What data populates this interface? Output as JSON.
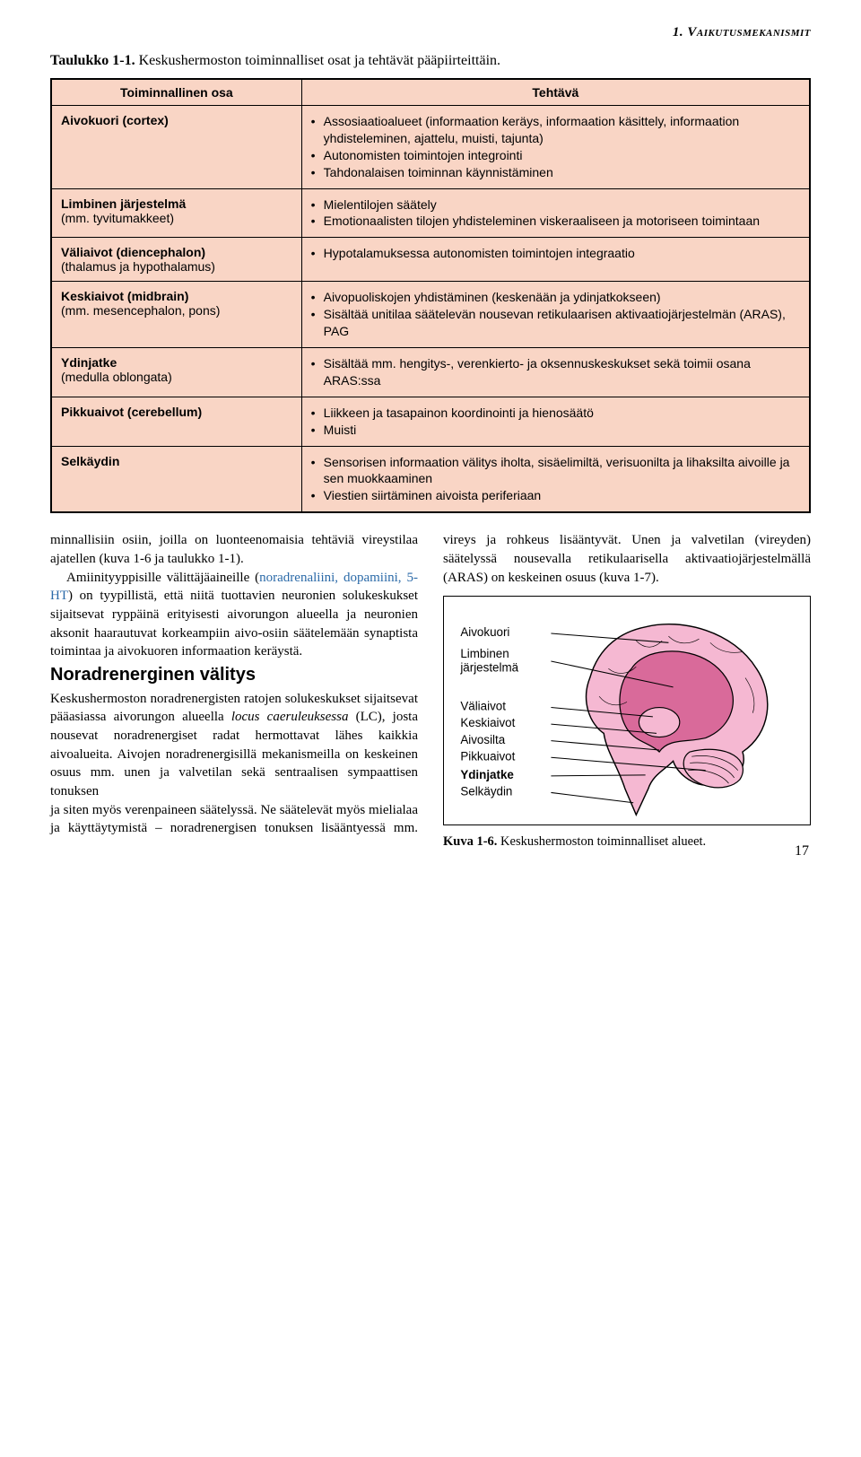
{
  "header": {
    "section_label": "1. Vaikutusmekanismit"
  },
  "table": {
    "caption_bold": "Taulukko 1-1.",
    "caption_rest": " Keskushermoston toiminnalliset osat ja tehtävät pääpiirteittäin.",
    "col1": "Toiminnallinen osa",
    "col2": "Tehtävä",
    "bg_color": "#f9d5c5",
    "rows": [
      {
        "osa_bold": "Aivokuori (cortex)",
        "osa_sub": "",
        "items": [
          "Assosiaatioalueet (informaation keräys, informaation käsittely, informaation yhdisteleminen, ajattelu, muisti, tajunta)",
          "Autonomisten toimintojen integrointi",
          "Tahdonalaisen toiminnan käynnistäminen"
        ]
      },
      {
        "osa_bold": "Limbinen järjestelmä",
        "osa_sub": "(mm. tyvitumakkeet)",
        "items": [
          "Mielentilojen säätely",
          "Emotionaalisten tilojen yhdisteleminen viskeraaliseen ja motoriseen toimintaan"
        ]
      },
      {
        "osa_bold": "Väliaivot (diencephalon)",
        "osa_sub": "(thalamus ja hypothalamus)",
        "items": [
          "Hypotalamuksessa autonomisten toimintojen integraatio"
        ]
      },
      {
        "osa_bold": "Keskiaivot (midbrain)",
        "osa_sub": "(mm. mesencephalon, pons)",
        "items": [
          "Aivopuoliskojen yhdistäminen (keskenään ja ydinjatkokseen)",
          "Sisältää unitilaa säätelevän nousevan retikulaarisen aktivaatiojärjestelmän (ARAS), PAG"
        ]
      },
      {
        "osa_bold": "Ydinjatke",
        "osa_sub": "(medulla oblongata)",
        "items": [
          "Sisältää mm. hengitys-, verenkierto- ja oksennuskeskukset sekä toimii osana ARAS:ssa"
        ]
      },
      {
        "osa_bold": "Pikkuaivot (cerebellum)",
        "osa_sub": "",
        "items": [
          "Liikkeen ja tasapainon koordinointi ja hienosäätö",
          "Muisti"
        ]
      },
      {
        "osa_bold": "Selkäydin",
        "osa_sub": "",
        "items": [
          "Sensorisen informaation välitys iholta, sisäelimiltä, verisuonilta ja lihaksilta aivoille ja sen muokkaaminen",
          "Viestien siirtäminen aivoista periferiaan"
        ]
      }
    ]
  },
  "body": {
    "p1": "minnallisiin osiin, joilla on luonteenomaisia tehtäviä vireystilaa ajatellen (kuva 1-6 ja taulukko 1-1).",
    "p2a": "Amiinityyppisille välittäjäaineille (",
    "p2_blue": "noradrenaliini, dopamiini, 5-HT",
    "p2b": ") on tyypillistä, että niitä tuottavien neuronien solukeskukset sijaitsevat ryppäinä erityisesti aivorungon alueella ja neuronien aksonit haarautuvat korkeampiin aivo-osiin säätelemään synaptista toimintaa ja aivokuoren informaation keräystä.",
    "h2": "Noradrenerginen välitys",
    "p3a": "Keskushermoston noradrenergisten ratojen solukeskukset sijaitsevat pääasiassa aivorungon alueella ",
    "p3_ital": "locus caeruleuksessa",
    "p3b": " (LC), josta nousevat noradrenergiset radat hermottavat lähes kaikkia aivoalueita. Aivojen noradrenergisillä mekanismeilla on keskeinen osuus mm. unen ja valvetilan sekä sentraalisen sympaattisen tonuksen",
    "p4": "ja siten myös verenpaineen säätelyssä. Ne säätelevät myös mielialaa ja käyttäytymistä – noradrenergisen tonuksen lisääntyessä mm. vireys ja rohkeus lisääntyvät. Unen ja valvetilan (vireyden) säätelyssä nousevalla retikulaarisella aktivaatiojärjestelmällä (ARAS) on keskeinen osuus (kuva 1-7)."
  },
  "figure": {
    "labels": {
      "aivokuori": "Aivokuori",
      "limbinen1": "Limbinen",
      "limbinen2": "järjestelmä",
      "valiaivot": "Väliaivot",
      "keskiaivot": "Keskiaivot",
      "aivosilta": "Aivosilta",
      "pikkuaivot": "Pikkuaivot",
      "ydinjatke": "Ydinjatke",
      "selkaydin": "Selkäydin"
    },
    "colors": {
      "brain_dark": "#d96a9a",
      "brain_light": "#f5b8d2",
      "outline": "#000000"
    },
    "caption_bold": "Kuva 1-6.",
    "caption_rest": " Keskushermoston toiminnalliset alueet."
  },
  "pagenum": "17"
}
